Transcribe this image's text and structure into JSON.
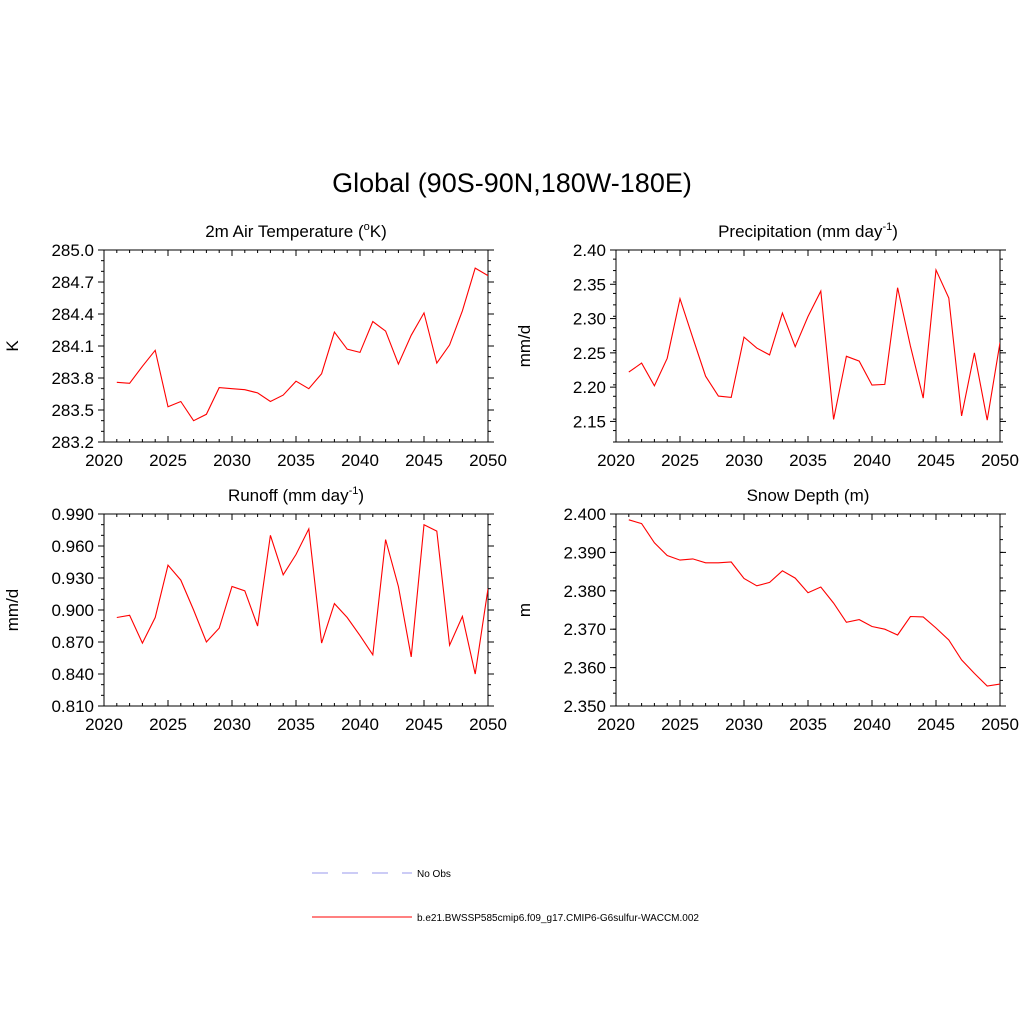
{
  "title": "Global (90S-90N,180W-180E)",
  "series_color": "#ff0000",
  "legend": [
    {
      "label": "No Obs",
      "style": "dashed",
      "color": "#9999ee"
    },
    {
      "label": "b.e21.BWSSP585cmip6.f09_g17.CMIP6-G6sulfur-WACCM.002",
      "style": "solid",
      "color": "#ff0000"
    }
  ],
  "chart_data": [
    {
      "type": "line",
      "title": "2m Air Temperature (",
      "title_sup": "o",
      "title_after": "K)",
      "ylabel": "K",
      "xlim": [
        2020,
        2050
      ],
      "ylim": [
        283.2,
        285.0
      ],
      "xticks": [
        2020,
        2025,
        2030,
        2035,
        2040,
        2045,
        2050
      ],
      "yticks": [
        "283.2",
        "283.5",
        "283.8",
        "284.1",
        "284.4",
        "284.7",
        "285.0"
      ],
      "x": [
        2021,
        2022,
        2023,
        2024,
        2025,
        2026,
        2027,
        2028,
        2029,
        2030,
        2031,
        2032,
        2033,
        2034,
        2035,
        2036,
        2037,
        2038,
        2039,
        2040,
        2041,
        2042,
        2043,
        2044,
        2045,
        2046,
        2047,
        2048,
        2049,
        2050
      ],
      "values": [
        283.76,
        283.75,
        283.91,
        284.06,
        283.53,
        283.58,
        283.4,
        283.46,
        283.71,
        283.7,
        283.69,
        283.66,
        283.58,
        283.64,
        283.77,
        283.7,
        283.84,
        284.23,
        284.07,
        284.04,
        284.33,
        284.24,
        283.93,
        284.2,
        284.41,
        283.94,
        284.11,
        284.43,
        284.83,
        284.76
      ]
    },
    {
      "type": "line",
      "title": "Precipitation (mm day",
      "title_sup": "-1",
      "title_after": ")",
      "ylabel": "mm/d",
      "xlim": [
        2020,
        2050
      ],
      "ylim": [
        2.12,
        2.4
      ],
      "xticks": [
        2020,
        2025,
        2030,
        2035,
        2040,
        2045,
        2050
      ],
      "yticks": [
        "2.15",
        "2.20",
        "2.25",
        "2.30",
        "2.35",
        "2.40"
      ],
      "x": [
        2021,
        2022,
        2023,
        2024,
        2025,
        2026,
        2027,
        2028,
        2029,
        2030,
        2031,
        2032,
        2033,
        2034,
        2035,
        2036,
        2037,
        2038,
        2039,
        2040,
        2041,
        2042,
        2043,
        2044,
        2045,
        2046,
        2047,
        2048,
        2049,
        2050
      ],
      "values": [
        2.222,
        2.235,
        2.202,
        2.242,
        2.329,
        2.272,
        2.216,
        2.187,
        2.185,
        2.273,
        2.257,
        2.247,
        2.308,
        2.259,
        2.303,
        2.34,
        2.153,
        2.245,
        2.238,
        2.203,
        2.204,
        2.345,
        2.26,
        2.184,
        2.371,
        2.33,
        2.158,
        2.25,
        2.152,
        2.265
      ]
    },
    {
      "type": "line",
      "title": "Runoff (mm day",
      "title_sup": "-1",
      "title_after": ")",
      "ylabel": "mm/d",
      "xlim": [
        2020,
        2050
      ],
      "ylim": [
        0.81,
        0.99
      ],
      "xticks": [
        2020,
        2025,
        2030,
        2035,
        2040,
        2045,
        2050
      ],
      "yticks": [
        "0.810",
        "0.840",
        "0.870",
        "0.900",
        "0.930",
        "0.960",
        "0.990"
      ],
      "x": [
        2021,
        2022,
        2023,
        2024,
        2025,
        2026,
        2027,
        2028,
        2029,
        2030,
        2031,
        2032,
        2033,
        2034,
        2035,
        2036,
        2037,
        2038,
        2039,
        2040,
        2041,
        2042,
        2043,
        2044,
        2045,
        2046,
        2047,
        2048,
        2049,
        2050
      ],
      "values": [
        0.893,
        0.895,
        0.869,
        0.893,
        0.942,
        0.928,
        0.9,
        0.87,
        0.883,
        0.922,
        0.918,
        0.885,
        0.97,
        0.933,
        0.952,
        0.976,
        0.869,
        0.906,
        0.893,
        0.876,
        0.858,
        0.966,
        0.922,
        0.856,
        0.98,
        0.974,
        0.867,
        0.894,
        0.84,
        0.92
      ]
    },
    {
      "type": "line",
      "title": "Snow Depth (m)",
      "title_sup": "",
      "title_after": "",
      "ylabel": "m",
      "xlim": [
        2020,
        2050
      ],
      "ylim": [
        2.35,
        2.4
      ],
      "xticks": [
        2020,
        2025,
        2030,
        2035,
        2040,
        2045,
        2050
      ],
      "yticks": [
        "2.350",
        "2.360",
        "2.370",
        "2.380",
        "2.390",
        "2.400"
      ],
      "x": [
        2021,
        2022,
        2023,
        2024,
        2025,
        2026,
        2027,
        2028,
        2029,
        2030,
        2031,
        2032,
        2033,
        2034,
        2035,
        2036,
        2037,
        2038,
        2039,
        2040,
        2041,
        2042,
        2043,
        2044,
        2045,
        2046,
        2047,
        2048,
        2049,
        2050
      ],
      "values": [
        2.3985,
        2.3975,
        2.3925,
        2.3892,
        2.388,
        2.3883,
        2.3873,
        2.3873,
        2.3875,
        2.3832,
        2.3813,
        2.3822,
        2.3852,
        2.3833,
        2.3795,
        2.381,
        2.3768,
        2.3718,
        2.3725,
        2.3707,
        2.37,
        2.3685,
        2.3733,
        2.3732,
        2.3703,
        2.3672,
        2.362,
        2.3585,
        2.3552,
        2.3557
      ]
    }
  ]
}
